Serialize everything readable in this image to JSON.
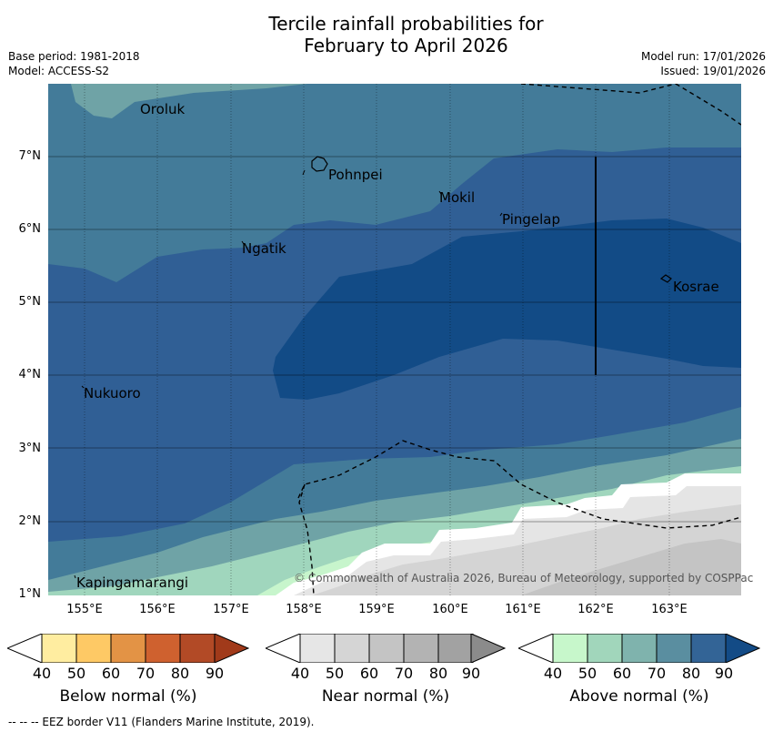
{
  "title": {
    "line1": "Tercile rainfall probabilities for",
    "line2": "February to April 2026"
  },
  "meta": {
    "base_period": "Base period: 1981-2018",
    "model": "Model: ACCESS-S2",
    "model_run": "Model run: 17/01/2026",
    "issued": "Issued: 19/01/2026"
  },
  "map": {
    "lat_ticks": [
      "7°N",
      "6°N",
      "5°N",
      "4°N",
      "3°N",
      "2°N",
      "1°N"
    ],
    "lon_ticks": [
      "155°E",
      "156°E",
      "157°E",
      "158°E",
      "159°E",
      "160°E",
      "161°E",
      "162°E",
      "163°E"
    ],
    "places": {
      "oroluk": "Oroluk",
      "pohnpei": "Pohnpei",
      "mokil": "Mokil",
      "pingelap": "Pingelap",
      "ngatik": "Ngatik",
      "kosrae": "Kosrae",
      "nukuoro": "Nukuoro",
      "kapingamarangi": "Kapingamarangi"
    },
    "copyright": "© Commonwealth of Australia 2026, Bureau of Meteorology, supported by COSPPac"
  },
  "colorbars": {
    "below": {
      "label": "Below normal (%)",
      "colors": [
        "#ffffff",
        "#ffeda0",
        "#fec965",
        "#e39345",
        "#cf612f",
        "#b24a26",
        "#a13a1a"
      ]
    },
    "near": {
      "label": "Near normal (%)",
      "colors": [
        "#ffffff",
        "#e6e6e6",
        "#d5d5d5",
        "#c4c4c4",
        "#b3b3b3",
        "#a2a2a2",
        "#8b8b8b"
      ]
    },
    "above": {
      "label": "Above normal (%)",
      "colors": [
        "#ffffff",
        "#c7f7cb",
        "#a1d6bb",
        "#7fb3ad",
        "#5a8ea0",
        "#336496",
        "#134b86"
      ]
    },
    "ticks": [
      "40",
      "50",
      "60",
      "70",
      "80",
      "90"
    ]
  },
  "footer": "--  --  -- EEZ border V11 (Flanders Marine Institute, 2019)."
}
